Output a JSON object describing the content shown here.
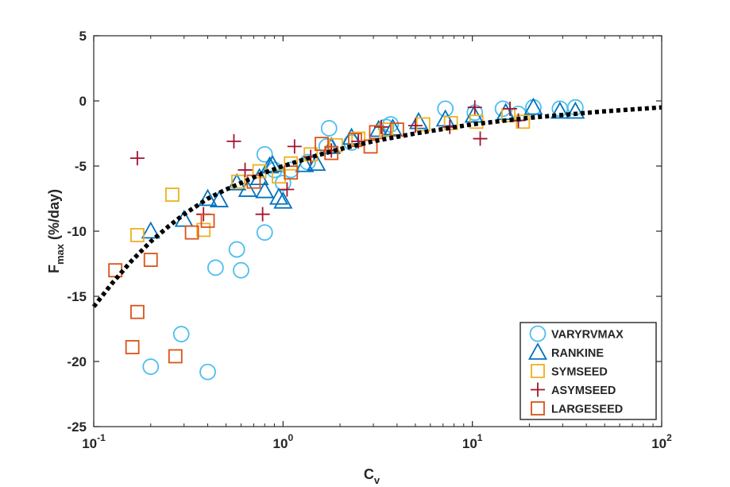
{
  "chart_data": {
    "type": "scatter",
    "title": "",
    "xlabel_main": "C",
    "xlabel_sub": "v",
    "ylabel_main": "F",
    "ylabel_sub": "max",
    "ylabel_suffix": " (%/day)",
    "xscale": "log",
    "xlim": [
      0.1,
      100
    ],
    "ylim": [
      -25,
      5
    ],
    "yticks": [
      5,
      0,
      -5,
      -10,
      -15,
      -20,
      -25
    ],
    "ytick_labels": [
      "5",
      "0",
      "-5",
      "-10",
      "-15",
      "-20",
      "-25"
    ],
    "xticks": [
      0.1,
      1,
      10,
      100
    ],
    "xtick_base": "10",
    "xtick_exponents": [
      "-1",
      "0",
      "1",
      "2"
    ],
    "legend_position": "bottom-right",
    "series": [
      {
        "name": "VARYRVMAX",
        "marker": "circle",
        "color": "#4DBEEE",
        "points": [
          [
            0.2,
            -20.4
          ],
          [
            0.29,
            -17.9
          ],
          [
            0.4,
            -20.8
          ],
          [
            0.44,
            -12.8
          ],
          [
            0.57,
            -11.4
          ],
          [
            0.6,
            -13.0
          ],
          [
            0.8,
            -4.1
          ],
          [
            0.8,
            -10.1
          ],
          [
            0.9,
            -5.3
          ],
          [
            1.0,
            -6.3
          ],
          [
            1.1,
            -5.3
          ],
          [
            1.35,
            -4.7
          ],
          [
            1.7,
            -3.5
          ],
          [
            1.75,
            -2.1
          ],
          [
            2.3,
            -3.2
          ],
          [
            3.5,
            -2.0
          ],
          [
            3.7,
            -1.8
          ],
          [
            7.2,
            -0.6
          ],
          [
            10.3,
            -0.9
          ],
          [
            14.5,
            -0.6
          ],
          [
            17.5,
            -1.0
          ],
          [
            21,
            -0.5
          ],
          [
            29,
            -0.6
          ],
          [
            35,
            -0.5
          ]
        ]
      },
      {
        "name": "RANKINE",
        "marker": "triangle",
        "color": "#0072BD",
        "points": [
          [
            0.2,
            -10.0
          ],
          [
            0.3,
            -9.1
          ],
          [
            0.4,
            -7.5
          ],
          [
            0.46,
            -7.6
          ],
          [
            0.57,
            -6.3
          ],
          [
            0.65,
            -6.8
          ],
          [
            0.75,
            -5.9
          ],
          [
            0.8,
            -6.9
          ],
          [
            0.85,
            -5.0
          ],
          [
            0.88,
            -4.9
          ],
          [
            0.95,
            -7.4
          ],
          [
            1.0,
            -7.7
          ],
          [
            1.3,
            -4.9
          ],
          [
            1.5,
            -4.8
          ],
          [
            1.8,
            -3.5
          ],
          [
            2.3,
            -2.8
          ],
          [
            3.2,
            -2.2
          ],
          [
            3.8,
            -2.1
          ],
          [
            5.2,
            -1.6
          ],
          [
            7.2,
            -1.4
          ],
          [
            10.2,
            -1.1
          ],
          [
            15,
            -0.9
          ],
          [
            21,
            -0.5
          ],
          [
            29,
            -0.8
          ],
          [
            35,
            -0.8
          ]
        ]
      },
      {
        "name": "SYMSEED",
        "marker": "square",
        "color": "#EDB120",
        "points": [
          [
            0.17,
            -10.3
          ],
          [
            0.26,
            -7.2
          ],
          [
            0.38,
            -9.9
          ],
          [
            0.58,
            -6.2
          ],
          [
            0.75,
            -5.4
          ],
          [
            0.95,
            -5.8
          ],
          [
            1.1,
            -4.8
          ],
          [
            1.4,
            -4.1
          ],
          [
            1.9,
            -3.4
          ],
          [
            2.5,
            -2.9
          ],
          [
            3.5,
            -2.2
          ],
          [
            5.5,
            -1.8
          ],
          [
            7.7,
            -1.7
          ],
          [
            10.5,
            -1.6
          ],
          [
            15.5,
            -1.1
          ],
          [
            18.5,
            -1.6
          ]
        ]
      },
      {
        "name": "ASYMSEED",
        "marker": "plus",
        "color": "#A2142F",
        "points": [
          [
            0.17,
            -4.4
          ],
          [
            0.38,
            -8.7
          ],
          [
            0.55,
            -3.1
          ],
          [
            0.63,
            -5.3
          ],
          [
            0.78,
            -8.7
          ],
          [
            1.05,
            -6.8
          ],
          [
            1.15,
            -3.5
          ],
          [
            1.4,
            -4.3
          ],
          [
            1.8,
            -3.8
          ],
          [
            2.5,
            -3.1
          ],
          [
            3.3,
            -2.0
          ],
          [
            5.0,
            -1.9
          ],
          [
            7.6,
            -2.0
          ],
          [
            10.3,
            -0.5
          ],
          [
            11,
            -2.9
          ],
          [
            15.8,
            -0.6
          ],
          [
            17.5,
            -1.5
          ]
        ]
      },
      {
        "name": "LARGESEED",
        "marker": "square",
        "color": "#D95319",
        "points": [
          [
            0.13,
            -13.0
          ],
          [
            0.16,
            -18.9
          ],
          [
            0.17,
            -16.2
          ],
          [
            0.2,
            -12.2
          ],
          [
            0.27,
            -19.6
          ],
          [
            0.33,
            -10.1
          ],
          [
            0.4,
            -9.2
          ],
          [
            0.7,
            -6.2
          ],
          [
            1.1,
            -5.5
          ],
          [
            1.6,
            -3.3
          ],
          [
            1.8,
            -4.0
          ],
          [
            2.4,
            -3.0
          ],
          [
            2.9,
            -3.5
          ],
          [
            3.1,
            -2.4
          ],
          [
            4.0,
            -2.2
          ]
        ]
      }
    ],
    "fit_line": {
      "style": "dotted",
      "color": "#000000",
      "x": [
        0.1,
        0.125,
        0.158,
        0.2,
        0.25,
        0.3,
        0.4,
        0.5,
        0.6,
        0.8,
        1,
        1.5,
        2,
        3,
        5,
        10,
        20,
        50,
        100
      ],
      "y": [
        -15.8,
        -14.0,
        -12.3,
        -10.8,
        -9.6,
        -8.7,
        -7.5,
        -6.8,
        -6.3,
        -5.5,
        -5.0,
        -4.2,
        -3.7,
        -3.1,
        -2.5,
        -1.8,
        -1.3,
        -0.8,
        -0.5
      ]
    }
  }
}
